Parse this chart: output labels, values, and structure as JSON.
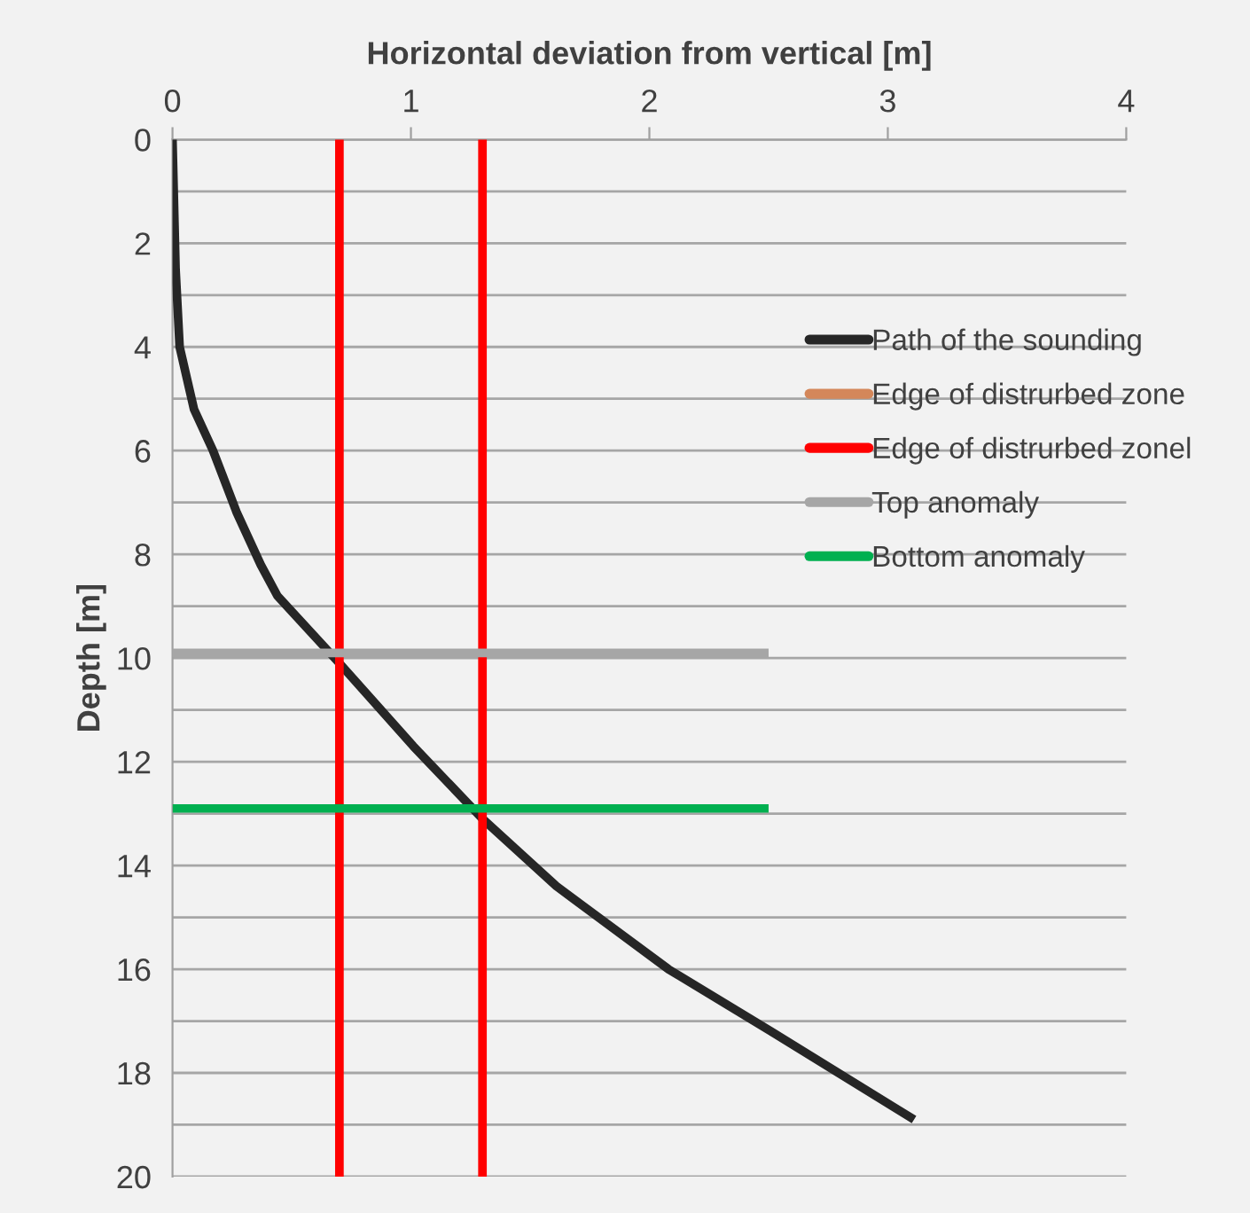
{
  "chart_data": {
    "type": "line",
    "xlabel": "Horizontal deviation from vertical [m]",
    "ylabel": "Depth [m]",
    "xlim": [
      0,
      4
    ],
    "xticks": [
      0,
      1,
      2,
      3,
      4
    ],
    "ylim": [
      20,
      0
    ],
    "yticks": [
      0,
      {
        "value": 1,
        "label": null
      },
      2,
      {
        "value": 3,
        "label": null
      },
      4,
      {
        "value": 5,
        "label": null
      },
      6,
      {
        "value": 7,
        "label": null
      },
      8,
      {
        "value": 9,
        "label": null
      },
      10,
      {
        "value": 11,
        "label": null
      },
      12,
      {
        "value": 13,
        "label": null
      },
      14,
      {
        "value": 15,
        "label": null
      },
      16,
      {
        "value": 17,
        "label": null
      },
      18,
      {
        "value": 19,
        "label": null
      },
      20
    ],
    "grid": "y",
    "legend": "right",
    "marker": "none",
    "line_style": "solid",
    "series": [
      {
        "name": "Path of the sounding",
        "color": "#262626",
        "x": [
          0,
          0.013,
          0.03,
          0.09,
          0.17,
          0.27,
          0.37,
          0.44,
          0.7,
          1.01,
          1.3,
          1.61,
          2.08,
          2.51,
          3.11
        ],
        "values": [
          0,
          2.5,
          4.0,
          5.2,
          6.0,
          7.2,
          8.2,
          8.8,
          10.1,
          11.7,
          13.1,
          14.4,
          16.0,
          17.2,
          18.9
        ]
      },
      {
        "name": "Edge of distrurbed zone",
        "color": "#d4875a"
      },
      {
        "name": "Edge of distrurbed zonel",
        "color": "#ff0000",
        "x": [
          0.7,
          0.7,
          null,
          1.3,
          1.3
        ],
        "values": [
          0,
          20,
          null,
          0,
          20
        ]
      },
      {
        "name": "Top anomaly",
        "color": "#a6a6a6",
        "x": [
          0,
          2.5
        ],
        "values": [
          9.9,
          9.9
        ]
      },
      {
        "name": "Bottom anomaly",
        "color": "#00b050",
        "x": [
          0,
          2.5
        ],
        "values": [
          12.9,
          12.9
        ]
      }
    ]
  }
}
